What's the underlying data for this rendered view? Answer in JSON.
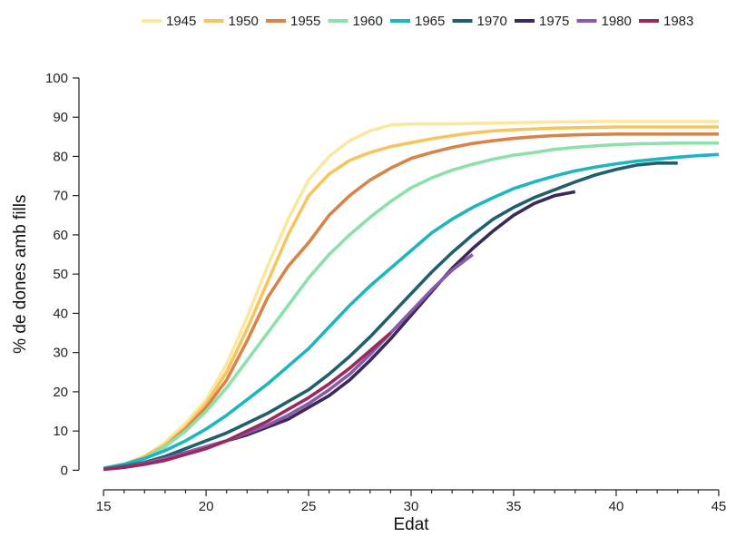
{
  "chart_data": {
    "type": "line",
    "xlabel": "Edat",
    "ylabel": "% de dones amb fills",
    "xlim": [
      13.8,
      45.8
    ],
    "ylim": [
      -5,
      106
    ],
    "xticks": [
      15,
      20,
      25,
      30,
      35,
      40,
      45
    ],
    "yticks": [
      0,
      10,
      20,
      30,
      40,
      50,
      60,
      70,
      80,
      90,
      100
    ],
    "grid": false,
    "legend_position": "top",
    "series": [
      {
        "name": "1945",
        "color": "#fbe8a0",
        "x": [
          15,
          16,
          17,
          18,
          19,
          20,
          21,
          22,
          23,
          24,
          25,
          26,
          27,
          28,
          29,
          30,
          31,
          32,
          33,
          34,
          35,
          36,
          37,
          38,
          39,
          40,
          41,
          42,
          43,
          44,
          45
        ],
        "y": [
          0.5,
          1.5,
          3.5,
          7,
          12,
          18,
          27,
          39,
          52,
          64,
          74,
          80,
          84,
          86.5,
          88,
          88.3,
          88.3,
          88.3,
          88.4,
          88.5,
          88.6,
          88.7,
          88.8,
          88.8,
          88.9,
          88.9,
          88.9,
          88.9,
          88.9,
          88.9,
          88.9
        ]
      },
      {
        "name": "1950",
        "color": "#f7c560",
        "x": [
          15,
          16,
          17,
          18,
          19,
          20,
          21,
          22,
          23,
          24,
          25,
          26,
          27,
          28,
          29,
          30,
          31,
          32,
          33,
          34,
          35,
          36,
          37,
          38,
          39,
          40,
          41,
          42,
          43,
          44,
          45
        ],
        "y": [
          0.5,
          1.5,
          3.5,
          6.5,
          11,
          17,
          25,
          36,
          48,
          60,
          70,
          75.5,
          79,
          81,
          82.5,
          83.5,
          84.5,
          85.3,
          86,
          86.5,
          86.8,
          87,
          87.2,
          87.3,
          87.4,
          87.5,
          87.5,
          87.5,
          87.5,
          87.5,
          87.5
        ]
      },
      {
        "name": "1955",
        "color": "#d88448",
        "x": [
          15,
          16,
          17,
          18,
          19,
          20,
          21,
          22,
          23,
          24,
          25,
          26,
          27,
          28,
          29,
          30,
          31,
          32,
          33,
          34,
          35,
          36,
          37,
          38,
          39,
          40,
          41,
          42,
          43,
          44,
          45
        ],
        "y": [
          0.5,
          1.5,
          3,
          6,
          10.5,
          16,
          23,
          33,
          44,
          52,
          58,
          65,
          70,
          74,
          77,
          79.5,
          81,
          82.3,
          83.3,
          84,
          84.6,
          85,
          85.3,
          85.5,
          85.6,
          85.7,
          85.7,
          85.7,
          85.7,
          85.7,
          85.7
        ]
      },
      {
        "name": "1960",
        "color": "#8ee0aa",
        "x": [
          15,
          16,
          17,
          18,
          19,
          20,
          21,
          22,
          23,
          24,
          25,
          26,
          27,
          28,
          29,
          30,
          31,
          32,
          33,
          34,
          35,
          36,
          37,
          38,
          39,
          40,
          41,
          42,
          43,
          44,
          45
        ],
        "y": [
          0.5,
          1.5,
          3,
          6,
          10,
          15,
          21,
          28,
          35,
          42,
          49,
          55,
          60,
          64.5,
          68.5,
          72,
          74.5,
          76.5,
          78,
          79.3,
          80.3,
          81,
          81.8,
          82.3,
          82.7,
          83,
          83.2,
          83.3,
          83.4,
          83.4,
          83.4
        ]
      },
      {
        "name": "1965",
        "color": "#1db6bf",
        "x": [
          15,
          16,
          17,
          18,
          19,
          20,
          21,
          22,
          23,
          24,
          25,
          26,
          27,
          28,
          29,
          30,
          31,
          32,
          33,
          34,
          35,
          36,
          37,
          38,
          39,
          40,
          41,
          42,
          43,
          44,
          45
        ],
        "y": [
          0.5,
          1.5,
          3,
          5,
          7.5,
          10.5,
          14,
          18,
          22,
          26.5,
          31,
          36.5,
          42,
          47,
          51.5,
          56,
          60.5,
          64,
          67,
          69.5,
          71.8,
          73.5,
          75,
          76.3,
          77.3,
          78.1,
          78.8,
          79.3,
          79.8,
          80.2,
          80.5
        ]
      },
      {
        "name": "1970",
        "color": "#205f6e",
        "x": [
          15,
          16,
          17,
          18,
          19,
          20,
          21,
          22,
          23,
          24,
          25,
          26,
          27,
          28,
          29,
          30,
          31,
          32,
          33,
          34,
          35,
          36,
          37,
          38,
          39,
          40,
          41,
          42,
          43
        ],
        "y": [
          0.3,
          1,
          2,
          3.5,
          5.5,
          7.5,
          9.5,
          12,
          14.5,
          17.5,
          20.5,
          24.5,
          29,
          34,
          39.5,
          45,
          50.5,
          55.5,
          60,
          64,
          67,
          69.5,
          71.5,
          73.5,
          75.3,
          76.7,
          77.8,
          78.3,
          78.3
        ]
      },
      {
        "name": "1975",
        "color": "#3a2a5a",
        "x": [
          15,
          16,
          17,
          18,
          19,
          20,
          21,
          22,
          23,
          24,
          25,
          26,
          27,
          28,
          29,
          30,
          31,
          32,
          33,
          34,
          35,
          36,
          37,
          38
        ],
        "y": [
          0.3,
          0.8,
          1.8,
          3,
          4.5,
          6,
          7.5,
          9,
          11,
          13,
          16,
          19,
          23,
          28,
          33.5,
          39.5,
          45.5,
          51.5,
          56.5,
          61,
          65,
          68,
          70,
          71
        ]
      },
      {
        "name": "1980",
        "color": "#8a5aab",
        "x": [
          15,
          16,
          17,
          18,
          19,
          20,
          21,
          22,
          23,
          24,
          25,
          26,
          27,
          28,
          29,
          30,
          31,
          32,
          33
        ],
        "y": [
          0.3,
          0.8,
          1.8,
          3,
          4.5,
          6,
          7.5,
          9.5,
          11.5,
          14,
          17,
          20.5,
          24.5,
          29.5,
          35,
          40.5,
          46,
          51,
          55
        ]
      },
      {
        "name": "1983",
        "color": "#992a5e",
        "x": [
          15,
          16,
          17,
          18,
          19,
          20,
          21,
          22,
          23,
          24,
          25,
          26,
          27,
          28,
          29
        ],
        "y": [
          0.2,
          0.7,
          1.5,
          2.5,
          4,
          5.5,
          7.5,
          10,
          12.5,
          15.5,
          18.5,
          22,
          26,
          30.5,
          35
        ]
      }
    ]
  }
}
